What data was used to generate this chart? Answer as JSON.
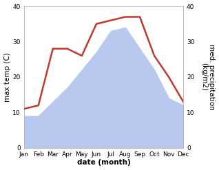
{
  "months": [
    "Jan",
    "Feb",
    "Mar",
    "Apr",
    "May",
    "Jun",
    "Jul",
    "Aug",
    "Sep",
    "Oct",
    "Nov",
    "Dec"
  ],
  "max_temp": [
    9,
    9,
    13,
    17,
    22,
    27,
    33,
    34,
    28,
    22,
    14,
    12
  ],
  "precipitation": [
    11,
    12,
    28,
    28,
    26,
    35,
    36,
    37,
    37,
    26,
    20,
    13
  ],
  "temp_fill_color": "#b8c8ee",
  "precip_line_color": "#c0392b",
  "ylim": [
    0,
    40
  ],
  "xlabel": "date (month)",
  "ylabel_left": "max temp (C)",
  "ylabel_right": "med. precipitation\n(kg/m2)",
  "background_color": "#ffffff",
  "tick_fontsize": 6.5,
  "label_fontsize": 7.5
}
